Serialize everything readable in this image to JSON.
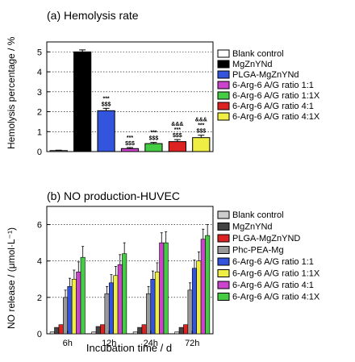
{
  "chart_data": [
    {
      "type": "bar",
      "title": "(a)  Hemolysis rate",
      "ylabel": "Hemolysis percentage / %",
      "ylim": [
        0,
        5.5
      ],
      "yticks": [
        "0",
        "1",
        "2",
        "3",
        "4",
        "5"
      ],
      "grid": true,
      "legend_position": "right",
      "categories": [
        "Blank control",
        "MgZnYNd",
        "PLGA-MgZnYNd",
        "6-Arg-6 A/G ratio 1:1",
        "6-Arg-6 A/G ratio 1:1X",
        "6-Arg-6 A/G ratio 4:1",
        "6-Arg-6 A/G ratio 4:1X"
      ],
      "values": [
        0.05,
        5.0,
        2.05,
        0.15,
        0.4,
        0.5,
        0.7
      ],
      "errors": [
        0.02,
        0.1,
        0.12,
        0.05,
        0.06,
        0.1,
        0.12
      ],
      "colors": [
        "#ffffff",
        "#000000",
        "#3355dd",
        "#cc44cc",
        "#44cc44",
        "#dd2222",
        "#eeee44"
      ],
      "annotations": [
        {
          "index": 2,
          "lines": [
            "***",
            "$$$"
          ]
        },
        {
          "index": 3,
          "lines": [
            "***",
            "$$$"
          ]
        },
        {
          "index": 4,
          "lines": [
            "***",
            "$$$"
          ]
        },
        {
          "index": 5,
          "lines": [
            "&&&",
            "***",
            "$$$"
          ]
        },
        {
          "index": 6,
          "lines": [
            "&&&",
            "***",
            "$$$"
          ]
        }
      ],
      "legend": [
        "Blank control",
        "MgZnYNd",
        "PLGA-MgZnYNd",
        "6-Arg-6 A/G ratio 1:1",
        "6-Arg-6 A/G ratio 1:1X",
        "6-Arg-6 A/G ratio 4:1",
        "6-Arg-6 A/G ratio 4:1X"
      ]
    },
    {
      "type": "bar",
      "title": "(b)  NO production-HUVEC",
      "xlabel": "Incubation time / d",
      "ylabel": "NO release / (μmol·L⁻¹)",
      "ylim": [
        0,
        7
      ],
      "yticks": [
        "0",
        "2",
        "4",
        "6"
      ],
      "grid": true,
      "legend_position": "right",
      "categories": [
        "6h",
        "12h",
        "24h",
        "72h"
      ],
      "series": [
        {
          "name": "Blank control",
          "color": "#cccccc",
          "values": [
            0.1,
            0.1,
            0.1,
            0.1
          ]
        },
        {
          "name": "MgZnYNd",
          "color": "#444444",
          "values": [
            0.35,
            0.4,
            0.35,
            0.35
          ]
        },
        {
          "name": "PLGA-MgZnYND",
          "color": "#dd2222",
          "values": [
            0.5,
            0.5,
            0.5,
            0.5
          ]
        },
        {
          "name": "Phc-PEA-Mg",
          "color": "#999999",
          "values": [
            2.0,
            2.2,
            2.2,
            2.4
          ]
        },
        {
          "name": "6-Arg-6 A/G ratio 1:1",
          "color": "#3355dd",
          "values": [
            2.6,
            2.8,
            3.0,
            3.6
          ]
        },
        {
          "name": "6-Arg-6 A/G ratio 1:1X",
          "color": "#eeee44",
          "values": [
            3.0,
            3.2,
            3.4,
            4.0
          ]
        },
        {
          "name": "6-Arg-6 A/G ratio 4:1",
          "color": "#cc44cc",
          "values": [
            3.4,
            3.8,
            5.0,
            5.2
          ]
        },
        {
          "name": "6-Arg-6 A/G ratio 4:1X",
          "color": "#44cc44",
          "values": [
            4.2,
            4.4,
            5.0,
            5.4
          ]
        }
      ],
      "legend": [
        "Blank control",
        "MgZnYNd",
        "PLGA-MgZnYND",
        "Phc-PEA-Mg",
        "6-Arg-6 A/G ratio 1:1",
        "6-Arg-6 A/G ratio 1:1X",
        "6-Arg-6 A/G ratio 4:1",
        "6-Arg-6 A/G ratio 4:1X"
      ]
    }
  ]
}
